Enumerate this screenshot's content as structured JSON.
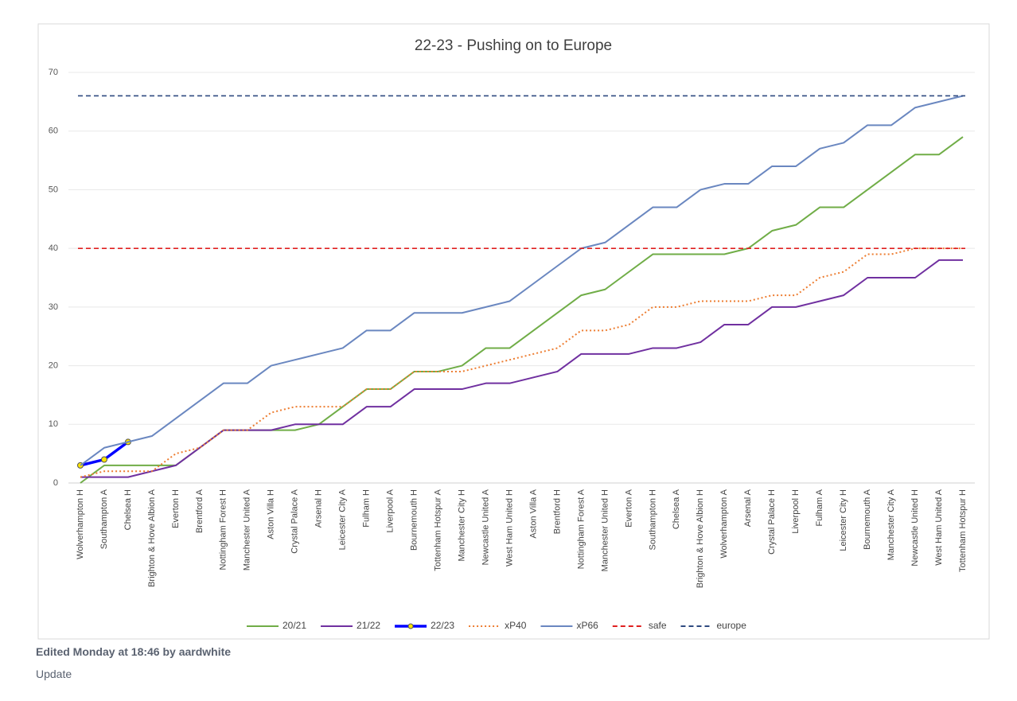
{
  "chart_data": {
    "type": "line",
    "title": "22-23 - Pushing on to Europe",
    "categories": [
      "Wolverhampton H",
      "Southampton A",
      "Chelsea H",
      "Brighton & Hove Albion A",
      "Everton H",
      "Brentford A",
      "Nottingham Forest H",
      "Manchester United A",
      "Aston Villa H",
      "Crystal Palace A",
      "Arsenal H",
      "Leicester City A",
      "Fulham H",
      "Liverpool A",
      "Bournemouth H",
      "Tottenham Hotspur A",
      "Manchester City H",
      "Newcastle United A",
      "West Ham United H",
      "Aston Villa A",
      "Brentford H",
      "Nottingham Forest A",
      "Manchester United H",
      "Everton A",
      "Southampton H",
      "Chelsea A",
      "Brighton & Hove Albion H",
      "Wolverhampton A",
      "Arsenal A",
      "Crystal Palace H",
      "Liverpool H",
      "Fulham A",
      "Leicester City H",
      "Bournemouth A",
      "Manchester City A",
      "Newcastle United H",
      "West Ham United A",
      "Tottenham Hotspur H"
    ],
    "series": [
      {
        "name": "20/21",
        "color": "#70ad47",
        "values": [
          0,
          3,
          3,
          3,
          3,
          6,
          9,
          9,
          9,
          9,
          10,
          13,
          16,
          16,
          19,
          19,
          20,
          23,
          23,
          26,
          29,
          32,
          33,
          36,
          39,
          39,
          39,
          39,
          40,
          43,
          44,
          47,
          47,
          50,
          53,
          56,
          56,
          59
        ]
      },
      {
        "name": "21/22",
        "color": "#7030a0",
        "values": [
          1,
          1,
          1,
          2,
          3,
          6,
          9,
          9,
          9,
          10,
          10,
          10,
          13,
          13,
          16,
          16,
          16,
          17,
          17,
          18,
          19,
          22,
          22,
          22,
          23,
          23,
          24,
          27,
          27,
          30,
          30,
          31,
          32,
          35,
          35,
          35,
          38,
          38
        ]
      },
      {
        "name": "22/23",
        "color": "#0000ff",
        "markers": true,
        "values": [
          3,
          4,
          7,
          null,
          null,
          null,
          null,
          null,
          null,
          null,
          null,
          null,
          null,
          null,
          null,
          null,
          null,
          null,
          null,
          null,
          null,
          null,
          null,
          null,
          null,
          null,
          null,
          null,
          null,
          null,
          null,
          null,
          null,
          null,
          null,
          null,
          null,
          null
        ]
      },
      {
        "name": "xP40",
        "color": "#ed7d31",
        "style": "dotted",
        "values": [
          1,
          2,
          2,
          2,
          5,
          6,
          9,
          9,
          12,
          13,
          13,
          13,
          16,
          16,
          19,
          19,
          19,
          20,
          21,
          22,
          23,
          26,
          26,
          27,
          30,
          30,
          31,
          31,
          31,
          32,
          32,
          35,
          36,
          39,
          39,
          40,
          40,
          40
        ]
      },
      {
        "name": "xP66",
        "color": "#6a87c0",
        "values": [
          3,
          6,
          7,
          8,
          11,
          14,
          17,
          17,
          20,
          21,
          22,
          23,
          26,
          26,
          29,
          29,
          29,
          30,
          31,
          34,
          37,
          40,
          41,
          44,
          47,
          47,
          50,
          51,
          51,
          54,
          54,
          57,
          58,
          61,
          61,
          64,
          65,
          66
        ]
      },
      {
        "name": "safe",
        "color": "#e02020",
        "style": "dashed",
        "value": 40
      },
      {
        "name": "europe",
        "color": "#2f4a80",
        "style": "dashed",
        "value": 66
      }
    ],
    "ylim": [
      0,
      70
    ],
    "yticks": [
      0,
      10,
      20,
      30,
      40,
      50,
      60,
      70
    ],
    "grid": true,
    "legend": "bottom"
  },
  "footer": {
    "edited": "Edited Monday at 18:46 by aardwhite",
    "note": "Update"
  }
}
